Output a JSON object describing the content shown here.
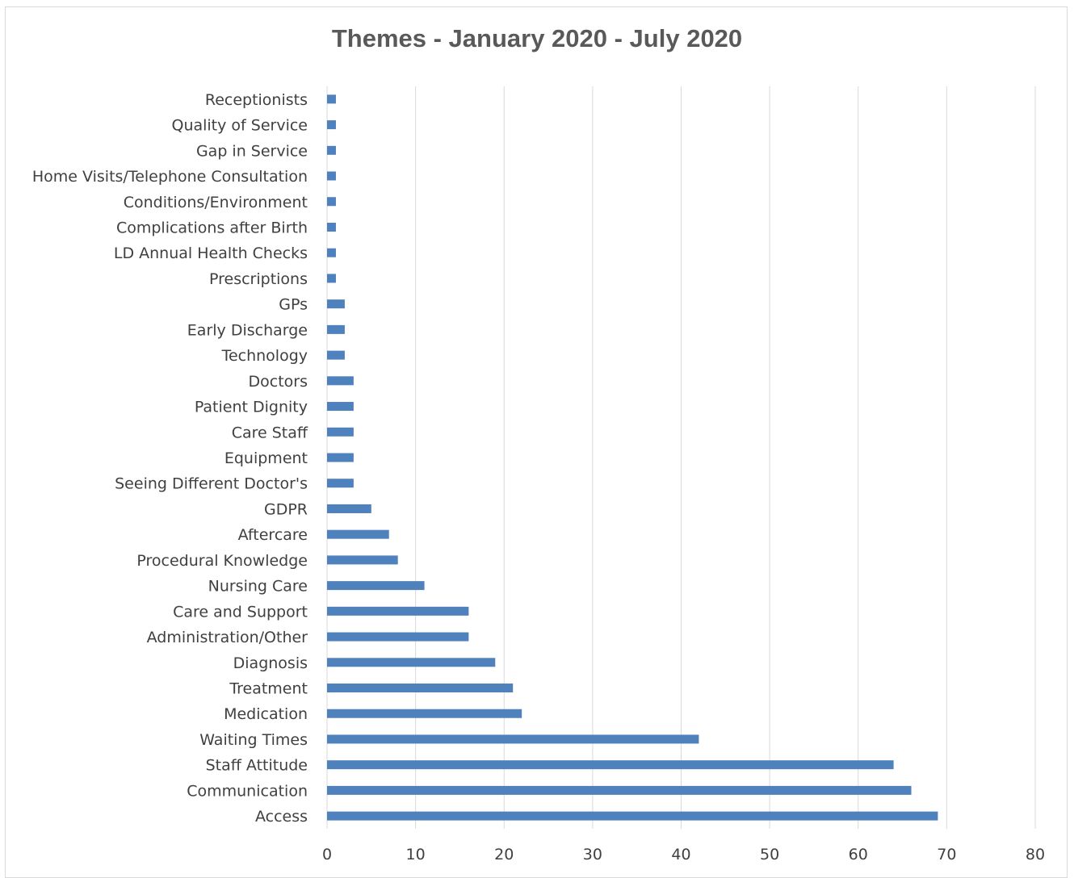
{
  "chart_data": {
    "type": "bar",
    "orientation": "horizontal",
    "title": "Themes - January 2020 - July 2020",
    "categories": [
      "Receptionists",
      "Quality of Service",
      "Gap in Service",
      "Home Visits/Telephone Consultation",
      "Conditions/Environment",
      "Complications after Birth",
      "LD Annual Health Checks",
      "Prescriptions",
      "GPs",
      "Early Discharge",
      "Technology",
      "Doctors",
      "Patient Dignity",
      "Care Staff",
      "Equipment",
      "Seeing Different Doctor's",
      "GDPR",
      "Aftercare",
      "Procedural Knowledge",
      "Nursing Care",
      "Care and Support",
      "Administration/Other",
      "Diagnosis",
      "Treatment",
      "Medication",
      "Waiting Times",
      "Staff Attitude",
      "Communication",
      "Access"
    ],
    "values": [
      1,
      1,
      1,
      1,
      1,
      1,
      1,
      1,
      2,
      2,
      2,
      3,
      3,
      3,
      3,
      3,
      5,
      7,
      8,
      11,
      16,
      16,
      19,
      21,
      22,
      42,
      64,
      66,
      69
    ],
    "xlim": [
      0,
      80
    ],
    "xticks": [
      "0",
      "10",
      "20",
      "30",
      "40",
      "50",
      "60",
      "70",
      "80"
    ],
    "grid": true,
    "legend": "none",
    "bar_color": "#4f81bd",
    "grid_color": "#d9d9d9"
  }
}
